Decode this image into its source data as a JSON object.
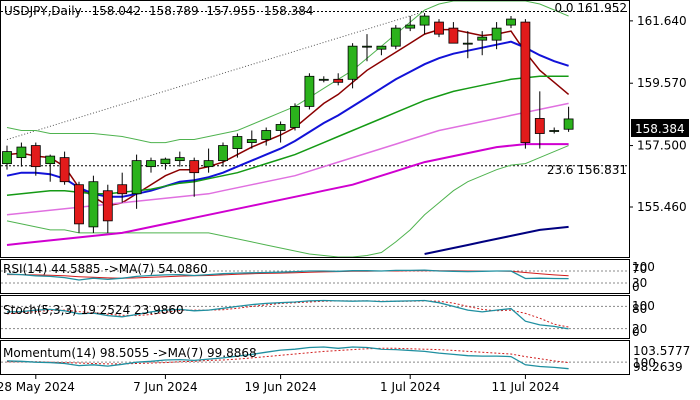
{
  "header": {
    "symbol": "USDJPY,Daily",
    "open": "158.042",
    "high": "158.789",
    "low": "157.955",
    "close": "158.384"
  },
  "current_price_label": "158.384",
  "fib_labels": {
    "top": "0.0 161.952",
    "level_236": "23.6 156.831"
  },
  "colors": {
    "bull": "#2bb21c",
    "bear": "#e21b1b",
    "ma_short": "#8b0000",
    "ma_blue": "#1212d8",
    "ma_green": "#159a15",
    "ma_pink": "#e070e0",
    "ma_magenta": "#d000d0",
    "ma_navy": "#000080",
    "band": "#4fb34f",
    "osc_main": "#1f8fa0",
    "osc_signal": "#d11c1c"
  },
  "oscillators": {
    "rsi": {
      "label": "RSI(14) 44.5885 ->MA(7) 54.0860",
      "scale": [
        "100",
        "70",
        "30",
        "0"
      ]
    },
    "stoch": {
      "label": "Stoch(5,3,3) 19.2524 23.9860",
      "scale": [
        "100",
        "80",
        "20",
        "0"
      ]
    },
    "momentum": {
      "label": "Momentum(14) 98.5055 ->MA(7) 99.8868",
      "scale": [
        "103.5777",
        "98.2639",
        "100"
      ]
    }
  },
  "chart_data": {
    "type": "candlestick",
    "symbol": "USDJPY",
    "timeframe": "Daily",
    "x_labels": [
      "28 May 2024",
      "7 Jun 2024",
      "19 Jun 2024",
      "1 Jul 2024",
      "11 Jul 2024"
    ],
    "y_ticks": [
      161.64,
      159.57,
      157.5,
      155.46
    ],
    "y_tick_labels": [
      "161.640",
      "159.570",
      "157.500",
      "155.460"
    ],
    "ylim": [
      153.8,
      162.3
    ],
    "candles": [
      {
        "o": 156.9,
        "h": 157.5,
        "l": 156.7,
        "c": 157.3
      },
      {
        "o": 157.1,
        "h": 157.6,
        "l": 156.8,
        "c": 157.45
      },
      {
        "o": 157.5,
        "h": 157.6,
        "l": 156.5,
        "c": 156.8
      },
      {
        "o": 156.9,
        "h": 157.2,
        "l": 156.3,
        "c": 157.15
      },
      {
        "o": 157.1,
        "h": 157.3,
        "l": 156.2,
        "c": 156.3
      },
      {
        "o": 156.2,
        "h": 156.3,
        "l": 154.6,
        "c": 154.9
      },
      {
        "o": 154.8,
        "h": 156.5,
        "l": 154.6,
        "c": 156.3
      },
      {
        "o": 156.0,
        "h": 156.2,
        "l": 154.6,
        "c": 155.0
      },
      {
        "o": 156.2,
        "h": 156.6,
        "l": 155.6,
        "c": 155.9
      },
      {
        "o": 155.9,
        "h": 157.2,
        "l": 155.4,
        "c": 157.0
      },
      {
        "o": 156.8,
        "h": 157.1,
        "l": 156.6,
        "c": 157.0
      },
      {
        "o": 156.9,
        "h": 157.1,
        "l": 156.7,
        "c": 157.05
      },
      {
        "o": 157.0,
        "h": 157.3,
        "l": 156.8,
        "c": 157.1
      },
      {
        "o": 157.0,
        "h": 157.1,
        "l": 155.8,
        "c": 156.6
      },
      {
        "o": 156.8,
        "h": 157.4,
        "l": 156.6,
        "c": 157.0
      },
      {
        "o": 157.0,
        "h": 157.6,
        "l": 156.8,
        "c": 157.5
      },
      {
        "o": 157.4,
        "h": 157.9,
        "l": 157.1,
        "c": 157.8
      },
      {
        "o": 157.6,
        "h": 158.0,
        "l": 157.4,
        "c": 157.7
      },
      {
        "o": 157.7,
        "h": 158.1,
        "l": 157.5,
        "c": 158.0
      },
      {
        "o": 158.0,
        "h": 158.3,
        "l": 157.6,
        "c": 158.2
      },
      {
        "o": 158.1,
        "h": 158.9,
        "l": 158.0,
        "c": 158.8
      },
      {
        "o": 158.8,
        "h": 159.9,
        "l": 158.7,
        "c": 159.8
      },
      {
        "o": 159.7,
        "h": 159.8,
        "l": 159.6,
        "c": 159.7
      },
      {
        "o": 159.7,
        "h": 159.9,
        "l": 159.5,
        "c": 159.6
      },
      {
        "o": 159.7,
        "h": 160.9,
        "l": 159.4,
        "c": 160.8
      },
      {
        "o": 160.8,
        "h": 161.2,
        "l": 160.3,
        "c": 160.8
      },
      {
        "o": 160.7,
        "h": 160.8,
        "l": 160.5,
        "c": 160.8
      },
      {
        "o": 160.8,
        "h": 161.5,
        "l": 160.7,
        "c": 161.4
      },
      {
        "o": 161.4,
        "h": 161.8,
        "l": 161.3,
        "c": 161.5
      },
      {
        "o": 161.5,
        "h": 161.9,
        "l": 161.2,
        "c": 161.8
      },
      {
        "o": 161.6,
        "h": 161.7,
        "l": 161.1,
        "c": 161.2
      },
      {
        "o": 161.4,
        "h": 161.6,
        "l": 160.9,
        "c": 160.9
      },
      {
        "o": 160.9,
        "h": 161.3,
        "l": 160.4,
        "c": 160.9
      },
      {
        "o": 161.0,
        "h": 161.3,
        "l": 160.5,
        "c": 161.1
      },
      {
        "o": 161.0,
        "h": 161.6,
        "l": 160.7,
        "c": 161.4
      },
      {
        "o": 161.5,
        "h": 161.8,
        "l": 161.4,
        "c": 161.7
      },
      {
        "o": 161.6,
        "h": 161.7,
        "l": 157.4,
        "c": 157.6
      },
      {
        "o": 158.4,
        "h": 159.3,
        "l": 157.4,
        "c": 157.9
      },
      {
        "o": 158.0,
        "h": 158.1,
        "l": 157.9,
        "c": 158.0
      },
      {
        "o": 158.042,
        "h": 158.789,
        "l": 157.955,
        "c": 158.384
      }
    ],
    "moving_averages": [
      {
        "key": "ma_short",
        "values": [
          157.2,
          157.25,
          157.15,
          157.1,
          156.8,
          156.1,
          155.8,
          155.5,
          155.6,
          155.9,
          156.2,
          156.5,
          156.7,
          156.7,
          156.8,
          156.95,
          157.2,
          157.45,
          157.65,
          157.85,
          158.1,
          158.5,
          158.9,
          159.2,
          159.6,
          160.0,
          160.3,
          160.6,
          160.9,
          161.2,
          161.35,
          161.35,
          161.25,
          161.15,
          161.2,
          161.3,
          160.6,
          160.0,
          159.6,
          159.2
        ]
      },
      {
        "key": "ma_blue",
        "values": [
          156.5,
          156.6,
          156.6,
          156.55,
          156.4,
          156.1,
          155.9,
          155.8,
          155.8,
          155.9,
          156.0,
          156.15,
          156.3,
          156.35,
          156.45,
          156.6,
          156.8,
          157.0,
          157.2,
          157.4,
          157.65,
          157.95,
          158.25,
          158.5,
          158.8,
          159.1,
          159.4,
          159.7,
          159.95,
          160.2,
          160.4,
          160.55,
          160.65,
          160.75,
          160.85,
          160.95,
          160.75,
          160.5,
          160.3,
          160.15
        ]
      },
      {
        "key": "ma_green",
        "values": [
          155.85,
          155.9,
          155.95,
          156.0,
          156.0,
          155.95,
          155.9,
          155.9,
          155.95,
          156.0,
          156.05,
          156.15,
          156.25,
          156.3,
          156.4,
          156.5,
          156.6,
          156.75,
          156.9,
          157.05,
          157.2,
          157.4,
          157.6,
          157.8,
          158.0,
          158.2,
          158.4,
          158.6,
          158.8,
          159.0,
          159.15,
          159.3,
          159.4,
          159.5,
          159.6,
          159.7,
          159.75,
          159.8,
          159.8,
          159.8
        ]
      },
      {
        "key": "ma_pink",
        "values": [
          155.2,
          155.25,
          155.3,
          155.35,
          155.4,
          155.45,
          155.5,
          155.55,
          155.6,
          155.65,
          155.7,
          155.75,
          155.8,
          155.85,
          155.9,
          156.0,
          156.1,
          156.2,
          156.3,
          156.4,
          156.5,
          156.65,
          156.8,
          156.95,
          157.1,
          157.25,
          157.4,
          157.55,
          157.7,
          157.85,
          158.0,
          158.1,
          158.2,
          158.3,
          158.4,
          158.5,
          158.6,
          158.7,
          158.8,
          158.9
        ]
      },
      {
        "key": "ma_magenta",
        "values": [
          154.2,
          154.25,
          154.3,
          154.35,
          154.4,
          154.45,
          154.5,
          154.55,
          154.6,
          154.7,
          154.8,
          154.9,
          155.0,
          155.1,
          155.2,
          155.3,
          155.4,
          155.5,
          155.6,
          155.7,
          155.8,
          155.9,
          156.0,
          156.1,
          156.2,
          156.35,
          156.5,
          156.65,
          156.8,
          156.95,
          157.05,
          157.15,
          157.25,
          157.35,
          157.45,
          157.5,
          157.55,
          157.55,
          157.55,
          157.55
        ]
      },
      {
        "key": "ma_navy",
        "values": [
          null,
          null,
          null,
          null,
          null,
          null,
          null,
          null,
          null,
          null,
          null,
          null,
          null,
          null,
          null,
          null,
          null,
          null,
          null,
          null,
          null,
          null,
          null,
          null,
          null,
          null,
          null,
          null,
          null,
          153.9,
          154.0,
          154.1,
          154.2,
          154.3,
          154.4,
          154.5,
          154.6,
          154.7,
          154.75,
          154.8
        ]
      }
    ],
    "band_upper": [
      158.1,
      158.0,
      158.0,
      157.9,
      157.9,
      157.9,
      157.9,
      157.85,
      157.8,
      157.7,
      157.6,
      157.6,
      157.7,
      157.7,
      157.8,
      157.9,
      158.0,
      158.2,
      158.4,
      158.6,
      158.8,
      159.1,
      159.4,
      159.7,
      160.0,
      160.4,
      160.8,
      161.2,
      161.6,
      162.0,
      162.2,
      162.3,
      162.3,
      162.3,
      162.3,
      162.3,
      162.3,
      162.2,
      162.0,
      161.8
    ],
    "band_lower": [
      155.0,
      154.9,
      154.8,
      154.7,
      154.7,
      154.6,
      154.6,
      154.6,
      154.6,
      154.6,
      154.6,
      154.6,
      154.6,
      154.6,
      154.6,
      154.5,
      154.4,
      154.3,
      154.2,
      154.1,
      154.0,
      153.9,
      153.85,
      153.8,
      153.8,
      153.85,
      153.95,
      154.3,
      154.7,
      155.2,
      155.6,
      156.0,
      156.3,
      156.5,
      156.7,
      156.85,
      156.9,
      157.1,
      157.3,
      157.5
    ],
    "hlines": [
      {
        "label_key": "top",
        "value": 161.952
      },
      {
        "label_key": "level_236",
        "value": 156.831
      }
    ],
    "trendline": {
      "from": {
        "index": 0,
        "value": 157.7
      },
      "to": {
        "index": 29,
        "value": 161.952
      }
    },
    "rsi": {
      "main": [
        60,
        58,
        54,
        52,
        48,
        40,
        46,
        42,
        46,
        52,
        55,
        57,
        58,
        55,
        58,
        61,
        63,
        64,
        65,
        66,
        68,
        70,
        70,
        69,
        71,
        71,
        70,
        72,
        72,
        73,
        70,
        69,
        68,
        69,
        70,
        70,
        45,
        46,
        45,
        44.6
      ],
      "signal": [
        58,
        58,
        57,
        56,
        54,
        51,
        49,
        47,
        46,
        47,
        49,
        51,
        53,
        54,
        55,
        57,
        59,
        61,
        62,
        63,
        64,
        66,
        67,
        68,
        69,
        69,
        70,
        70,
        71,
        71,
        71,
        71,
        70,
        70,
        70,
        69,
        65,
        61,
        57,
        54.1
      ]
    },
    "stoch": {
      "main": [
        65,
        66,
        70,
        72,
        68,
        60,
        62,
        55,
        52,
        58,
        65,
        70,
        72,
        68,
        70,
        75,
        80,
        85,
        88,
        90,
        92,
        95,
        96,
        95,
        94,
        95,
        93,
        94,
        95,
        96,
        90,
        80,
        70,
        65,
        70,
        74,
        40,
        30,
        26,
        19.3
      ],
      "signal": [
        60,
        63,
        66,
        69,
        70,
        66,
        63,
        59,
        56,
        55,
        58,
        64,
        69,
        70,
        70,
        71,
        75,
        80,
        84,
        88,
        90,
        92,
        94,
        95,
        95,
        95,
        94,
        94,
        94,
        95,
        94,
        89,
        80,
        72,
        68,
        70,
        61,
        48,
        32,
        24.0
      ]
    },
    "momentum": {
      "main": [
        100.3,
        100.2,
        100.0,
        99.9,
        99.7,
        99.2,
        99.4,
        99.1,
        99.5,
        100.0,
        100.2,
        100.5,
        100.6,
        100.4,
        100.7,
        101.0,
        101.4,
        101.8,
        102.3,
        102.8,
        103.0,
        103.4,
        103.5,
        103.2,
        103.5,
        103.4,
        103.0,
        102.9,
        102.7,
        102.5,
        102.1,
        101.8,
        101.5,
        101.4,
        101.4,
        101.3,
        99.4,
        99.0,
        98.8,
        98.5
      ],
      "signal": [
        100.1,
        100.1,
        100.1,
        100.0,
        99.9,
        99.8,
        99.7,
        99.6,
        99.6,
        99.7,
        99.8,
        99.9,
        100.1,
        100.2,
        100.4,
        100.5,
        100.7,
        101.0,
        101.3,
        101.6,
        101.9,
        102.2,
        102.5,
        102.7,
        102.9,
        103.1,
        103.2,
        103.2,
        103.1,
        103.0,
        102.9,
        102.7,
        102.5,
        102.3,
        102.1,
        101.9,
        101.3,
        100.8,
        100.3,
        99.9
      ]
    }
  }
}
